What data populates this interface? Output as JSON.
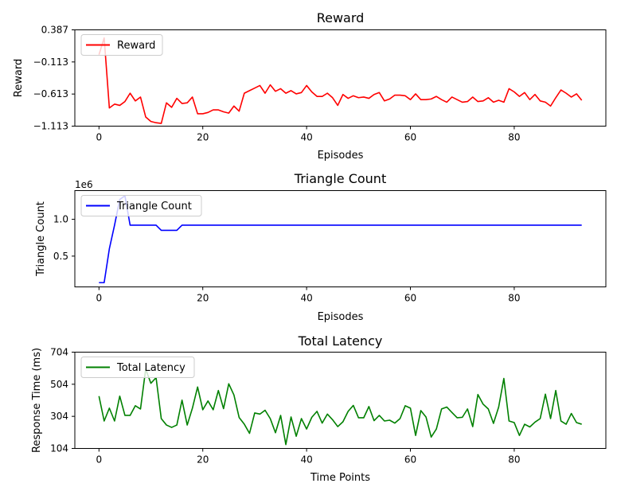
{
  "chart_data": [
    {
      "type": "line",
      "title": "Reward",
      "xlabel": "Episodes",
      "ylabel": "Reward",
      "xlim": [
        -4.65,
        97.65
      ],
      "ylim": [
        -1.113,
        0.387
      ],
      "xticks": [
        0,
        20,
        40,
        60,
        80
      ],
      "yticks": [
        -1.113,
        -0.613,
        -0.113,
        0.387
      ],
      "ytick_labels": [
        "−1.113",
        "−0.613",
        "−0.113",
        "0.387"
      ],
      "offset_text": "",
      "legend": "upper left",
      "series": [
        {
          "name": "Reward",
          "color": "#ff0000",
          "x": [
            0,
            1,
            2,
            3,
            4,
            5,
            6,
            7,
            8,
            9,
            10,
            11,
            12,
            13,
            14,
            15,
            16,
            17,
            18,
            19,
            20,
            21,
            22,
            23,
            24,
            25,
            26,
            27,
            28,
            29,
            30,
            31,
            32,
            33,
            34,
            35,
            36,
            37,
            38,
            39,
            40,
            41,
            42,
            43,
            44,
            45,
            46,
            47,
            48,
            49,
            50,
            51,
            52,
            53,
            54,
            55,
            56,
            57,
            58,
            59,
            60,
            61,
            62,
            63,
            64,
            65,
            66,
            67,
            68,
            69,
            70,
            71,
            72,
            73,
            74,
            75,
            76,
            77,
            78,
            79,
            80,
            81,
            82,
            83,
            84,
            85,
            86,
            87,
            88,
            89,
            90,
            91,
            92,
            93
          ],
          "values": [
            0.0,
            0.26,
            -0.83,
            -0.77,
            -0.79,
            -0.73,
            -0.6,
            -0.72,
            -0.66,
            -0.97,
            -1.04,
            -1.06,
            -1.07,
            -0.75,
            -0.82,
            -0.68,
            -0.76,
            -0.75,
            -0.66,
            -0.92,
            -0.92,
            -0.9,
            -0.86,
            -0.86,
            -0.89,
            -0.91,
            -0.8,
            -0.88,
            -0.6,
            -0.56,
            -0.52,
            -0.48,
            -0.6,
            -0.47,
            -0.57,
            -0.53,
            -0.6,
            -0.56,
            -0.61,
            -0.59,
            -0.48,
            -0.58,
            -0.65,
            -0.65,
            -0.6,
            -0.67,
            -0.79,
            -0.62,
            -0.68,
            -0.64,
            -0.67,
            -0.66,
            -0.68,
            -0.62,
            -0.59,
            -0.72,
            -0.69,
            -0.63,
            -0.63,
            -0.64,
            -0.7,
            -0.61,
            -0.7,
            -0.7,
            -0.69,
            -0.65,
            -0.7,
            -0.74,
            -0.66,
            -0.7,
            -0.74,
            -0.73,
            -0.66,
            -0.73,
            -0.72,
            -0.67,
            -0.74,
            -0.71,
            -0.74,
            -0.53,
            -0.58,
            -0.65,
            -0.59,
            -0.7,
            -0.62,
            -0.72,
            -0.74,
            -0.8,
            -0.67,
            -0.55,
            -0.6,
            -0.66,
            -0.61,
            -0.71
          ]
        }
      ]
    },
    {
      "type": "line",
      "title": "Triangle Count",
      "xlabel": "Episodes",
      "ylabel": "Triangle Count",
      "xlim": [
        -4.65,
        97.65
      ],
      "ylim": [
        0.082,
        1.39
      ],
      "xticks": [
        0,
        20,
        40,
        60,
        80
      ],
      "yticks": [
        0.5,
        1.0
      ],
      "ytick_labels": [
        "0.5",
        "1.0"
      ],
      "offset_text": "1e6",
      "legend": "upper left",
      "series": [
        {
          "name": "Triangle Count",
          "color": "#0000ff",
          "x": [
            0,
            1,
            2,
            3,
            4,
            5,
            6,
            7,
            8,
            9,
            10,
            11,
            12,
            13,
            14,
            15,
            16,
            17,
            18,
            19,
            20,
            21,
            22,
            23,
            24,
            25,
            26,
            27,
            28,
            29,
            30,
            31,
            32,
            33,
            34,
            35,
            36,
            37,
            38,
            39,
            40,
            41,
            42,
            43,
            44,
            45,
            46,
            47,
            48,
            49,
            50,
            51,
            52,
            53,
            54,
            55,
            56,
            57,
            58,
            59,
            60,
            61,
            62,
            63,
            64,
            65,
            66,
            67,
            68,
            69,
            70,
            71,
            72,
            73,
            74,
            75,
            76,
            77,
            78,
            79,
            80,
            81,
            82,
            83,
            84,
            85,
            86,
            87,
            88,
            89,
            90,
            91,
            92,
            93
          ],
          "values": [
            0.14,
            0.14,
            0.6,
            0.92,
            1.27,
            1.32,
            0.92,
            0.92,
            0.92,
            0.92,
            0.92,
            0.92,
            0.85,
            0.85,
            0.85,
            0.85,
            0.92,
            0.92,
            0.92,
            0.92,
            0.92,
            0.92,
            0.92,
            0.92,
            0.92,
            0.92,
            0.92,
            0.92,
            0.92,
            0.92,
            0.92,
            0.92,
            0.92,
            0.92,
            0.92,
            0.92,
            0.92,
            0.92,
            0.92,
            0.92,
            0.92,
            0.92,
            0.92,
            0.92,
            0.92,
            0.92,
            0.92,
            0.92,
            0.92,
            0.92,
            0.92,
            0.92,
            0.92,
            0.92,
            0.92,
            0.92,
            0.92,
            0.92,
            0.92,
            0.92,
            0.92,
            0.92,
            0.92,
            0.92,
            0.92,
            0.92,
            0.92,
            0.92,
            0.92,
            0.92,
            0.92,
            0.92,
            0.92,
            0.92,
            0.92,
            0.92,
            0.92,
            0.92,
            0.92,
            0.92,
            0.92,
            0.92,
            0.92,
            0.92,
            0.92,
            0.92,
            0.92,
            0.92,
            0.92,
            0.92,
            0.92,
            0.92,
            0.92,
            0.92
          ]
        }
      ]
    },
    {
      "type": "line",
      "title": "Total Latency",
      "xlabel": "Time Points",
      "ylabel": "Response Time (ms)",
      "xlim": [
        -4.65,
        97.65
      ],
      "ylim": [
        104,
        704
      ],
      "xticks": [
        0,
        20,
        40,
        60,
        80
      ],
      "yticks": [
        104,
        304,
        504,
        704
      ],
      "ytick_labels": [
        "104",
        "304",
        "504",
        "704"
      ],
      "offset_text": "",
      "legend": "upper left",
      "series": [
        {
          "name": "Total Latency",
          "color": "#008000",
          "x": [
            0,
            1,
            2,
            3,
            4,
            5,
            6,
            7,
            8,
            9,
            10,
            11,
            12,
            13,
            14,
            15,
            16,
            17,
            18,
            19,
            20,
            21,
            22,
            23,
            24,
            25,
            26,
            27,
            28,
            29,
            30,
            31,
            32,
            33,
            34,
            35,
            36,
            37,
            38,
            39,
            40,
            41,
            42,
            43,
            44,
            45,
            46,
            47,
            48,
            49,
            50,
            51,
            52,
            53,
            54,
            55,
            56,
            57,
            58,
            59,
            60,
            61,
            62,
            63,
            64,
            65,
            66,
            67,
            68,
            69,
            70,
            71,
            72,
            73,
            74,
            75,
            76,
            77,
            78,
            79,
            80,
            81,
            82,
            83,
            84,
            85,
            86,
            87,
            88,
            89,
            90,
            91,
            92,
            93
          ],
          "values": [
            430,
            275,
            355,
            275,
            430,
            310,
            310,
            370,
            350,
            598,
            510,
            545,
            290,
            250,
            235,
            250,
            405,
            250,
            355,
            487,
            345,
            400,
            345,
            465,
            352,
            507,
            437,
            297,
            255,
            198,
            325,
            318,
            342,
            290,
            202,
            310,
            128,
            300,
            180,
            290,
            225,
            298,
            335,
            262,
            318,
            283,
            240,
            270,
            335,
            372,
            295,
            295,
            365,
            277,
            310,
            275,
            280,
            262,
            290,
            370,
            355,
            185,
            340,
            300,
            175,
            225,
            350,
            362,
            328,
            295,
            298,
            350,
            240,
            440,
            380,
            350,
            260,
            362,
            540,
            275,
            265,
            185,
            255,
            238,
            268,
            290,
            442,
            290,
            465,
            275,
            255,
            322,
            265,
            255
          ]
        }
      ]
    }
  ]
}
